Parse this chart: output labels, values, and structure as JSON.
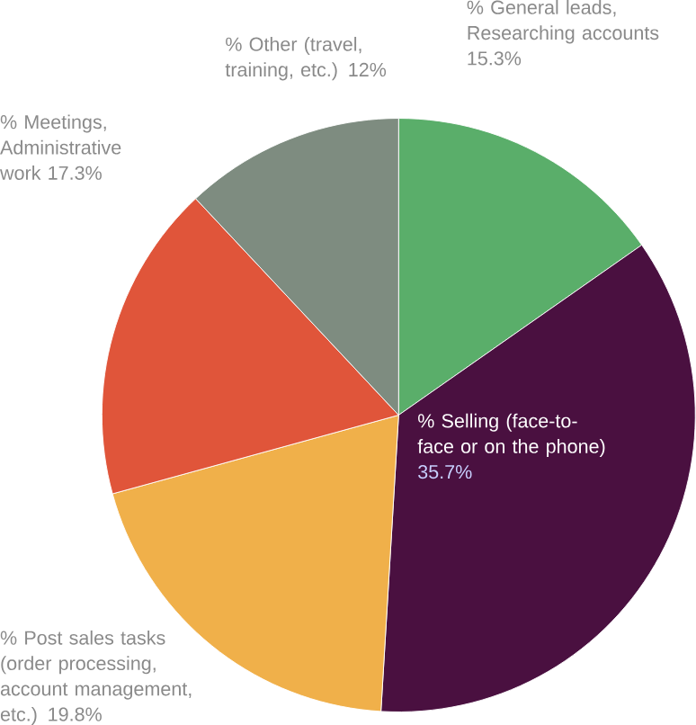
{
  "chart_data": {
    "type": "pie",
    "categories": [
      "% General leads, Researching accounts",
      "% Selling (face-to-face or on the phone)",
      "% Post sales tasks (order processing, account management, etc.)",
      "% Meetings, Administrative work",
      "% Other (travel, training, etc.)"
    ],
    "values": [
      15.3,
      35.7,
      19.8,
      17.3,
      12
    ],
    "value_labels": [
      "15.3%",
      "35.7%",
      "19.8%",
      "17.3%",
      "12%"
    ],
    "colors": [
      "#5aae6a",
      "#4a1040",
      "#f0b04a",
      "#e0553a",
      "#7e8c80"
    ]
  }
}
